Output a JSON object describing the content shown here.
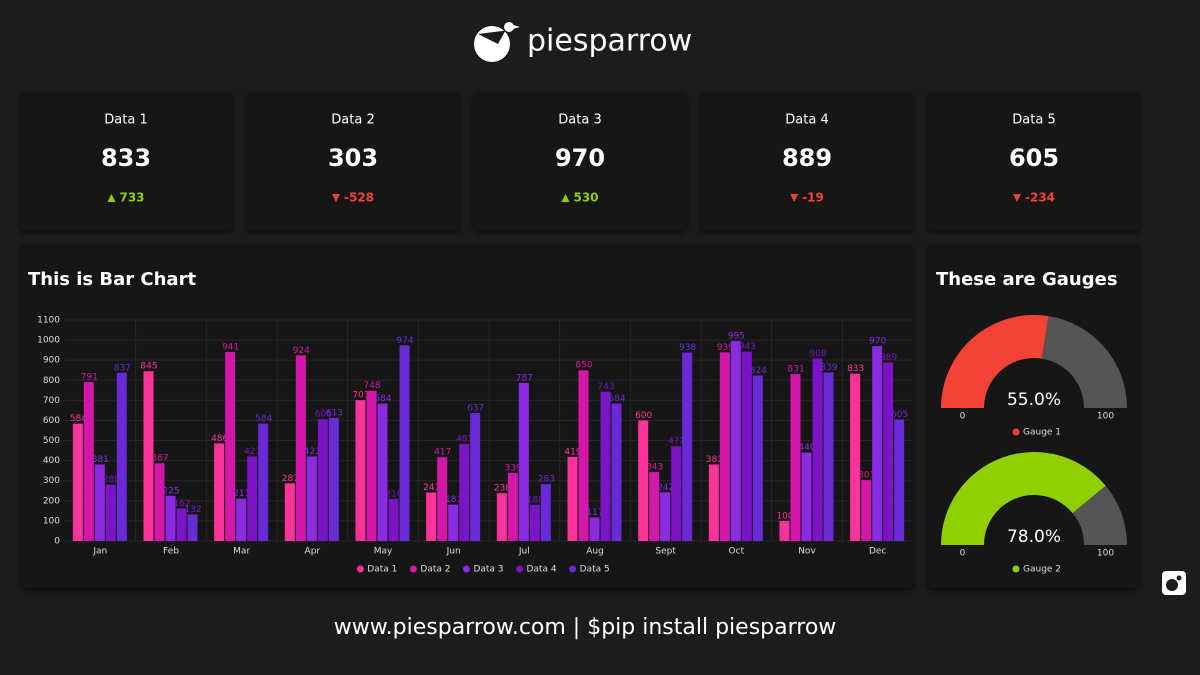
{
  "header": {
    "brand": "piesparrow"
  },
  "cards": [
    {
      "label": "Data 1",
      "value": 833,
      "delta": 733
    },
    {
      "label": "Data 2",
      "value": 303,
      "delta": -528
    },
    {
      "label": "Data 3",
      "value": 970,
      "delta": 530
    },
    {
      "label": "Data 4",
      "value": 889,
      "delta": -19
    },
    {
      "label": "Data 5",
      "value": 605,
      "delta": -234
    }
  ],
  "chart_data": [
    {
      "type": "bar",
      "title": "This is Bar Chart",
      "categories": [
        "Jan",
        "Feb",
        "Mar",
        "Apr",
        "May",
        "Jun",
        "Jul",
        "Aug",
        "Sept",
        "Oct",
        "Nov",
        "Dec"
      ],
      "series": [
        {
          "name": "Data 1",
          "color": "#ff3399",
          "values": [
            584,
            845,
            486,
            287,
            701,
            241,
            238,
            419,
            600,
            381,
            100,
            833
          ]
        },
        {
          "name": "Data 2",
          "color": "#d417a8",
          "values": [
            791,
            387,
            941,
            924,
            748,
            417,
            339,
            850,
            343,
            939,
            831,
            303
          ]
        },
        {
          "name": "Data 3",
          "color": "#8a2be2",
          "values": [
            381,
            225,
            211,
            421,
            684,
            181,
            787,
            117,
            242,
            995,
            440,
            970
          ]
        },
        {
          "name": "Data 4",
          "color": "#7a14c4",
          "values": [
            280,
            162,
            421,
            606,
            210,
            483,
            180,
            743,
            472,
            943,
            908,
            889
          ]
        },
        {
          "name": "Data 5",
          "color": "#6a2ad8",
          "values": [
            837,
            132,
            584,
            613,
            974,
            637,
            283,
            684,
            938,
            824,
            839,
            605
          ]
        }
      ],
      "ylim": [
        0,
        1100
      ],
      "yticks": [
        0,
        100,
        200,
        300,
        400,
        500,
        600,
        700,
        800,
        900,
        1000,
        1100
      ],
      "grid": true,
      "legend": "bottom"
    },
    {
      "type": "gauge",
      "title": "These are Gauges",
      "name": "Gauge 1",
      "color": "#f44336",
      "track_color": "#555555",
      "values": [
        55
      ],
      "value_labels": [
        "55.0%"
      ],
      "ylim": [
        0,
        100
      ],
      "yticks": [
        0,
        100
      ]
    },
    {
      "type": "gauge",
      "name": "Gauge 2",
      "color": "#8fcf00",
      "track_color": "#555555",
      "values": [
        78
      ],
      "value_labels": [
        "78.0%"
      ],
      "ylim": [
        0,
        100
      ],
      "yticks": [
        0,
        100
      ]
    }
  ],
  "footer": {
    "text": "www.piesparrow.com | $pip install piesparrow"
  }
}
